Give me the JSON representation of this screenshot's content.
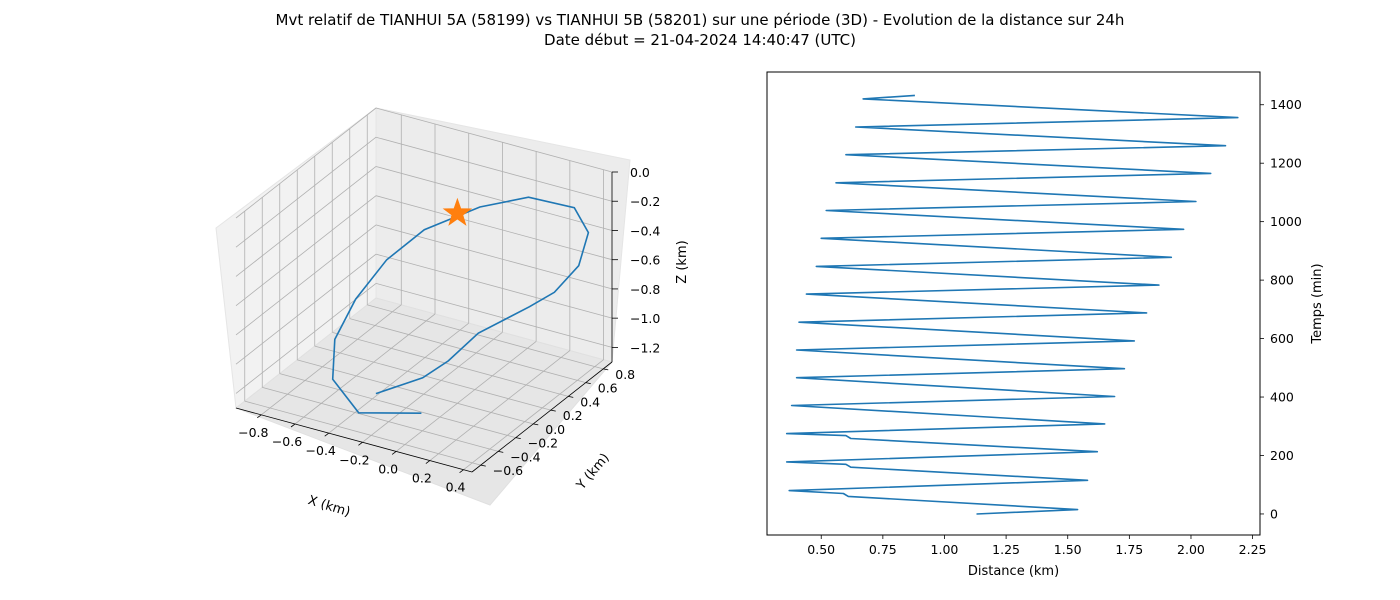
{
  "title_line1": "Mvt relatif de TIANHUI 5A (58199) vs TIANHUI 5B (58201) sur une période (3D) - Evolution de la distance sur 24h",
  "title_line2": "Date début = 21-04-2024 14:40:47 (UTC)",
  "colors": {
    "series": "#1f77b4",
    "marker": "#ff7f0e",
    "grid": "#b0b0b0",
    "pane": "#f2f2f2"
  },
  "chart_data": [
    {
      "type": "line3d",
      "xlabel": "X (km)",
      "ylabel": "Y (km)",
      "zlabel": "Z (km)",
      "x_ticks": [
        "−0.8",
        "−0.6",
        "−0.4",
        "−0.2",
        "0.0",
        "0.2",
        "0.4"
      ],
      "y_ticks": [
        "−0.6",
        "−0.4",
        "−0.2",
        "0.0",
        "0.2",
        "0.4",
        "0.6",
        "0.8"
      ],
      "z_ticks": [
        "0.0",
        "−0.2",
        "−0.4",
        "−0.6",
        "−0.8",
        "−1.0",
        "−1.2"
      ],
      "xlim": [
        -0.95,
        0.45
      ],
      "ylim": [
        -0.7,
        0.9
      ],
      "zlim": [
        -1.3,
        0.0
      ],
      "marker": {
        "shape": "star",
        "x": 0.0,
        "y": 0.0,
        "z": 0.0
      },
      "trajectory": {
        "x": [
          0.02,
          -0.3,
          -0.48,
          -0.53,
          -0.5,
          -0.42,
          -0.3,
          -0.1,
          0.1,
          0.32,
          0.44,
          0.46,
          0.42,
          0.35,
          0.15,
          0.05,
          -0.05,
          -0.25
        ],
        "y": [
          -0.45,
          -0.55,
          -0.5,
          -0.38,
          -0.2,
          0.0,
          0.2,
          0.45,
          0.62,
          0.72,
          0.65,
          0.5,
          0.3,
          0.15,
          -0.05,
          -0.2,
          -0.3,
          -0.45
        ],
        "z": [
          -1.15,
          -1.2,
          -1.05,
          -0.85,
          -0.65,
          -0.45,
          -0.3,
          -0.2,
          -0.15,
          -0.2,
          -0.3,
          -0.45,
          -0.55,
          -0.6,
          -0.75,
          -0.9,
          -1.0,
          -1.1
        ]
      }
    },
    {
      "type": "line",
      "xlabel": "Distance (km)",
      "ylabel": "Temps (min)",
      "xlim": [
        0.28,
        2.28
      ],
      "ylim": [
        -72,
        1512
      ],
      "x_ticks": [
        "0.50",
        "0.75",
        "1.00",
        "1.25",
        "1.50",
        "1.75",
        "2.00",
        "2.25"
      ],
      "x_tick_values": [
        0.5,
        0.75,
        1.0,
        1.25,
        1.5,
        1.75,
        2.0,
        2.25
      ],
      "y_ticks": [
        "0",
        "200",
        "400",
        "600",
        "800",
        "1000",
        "1200",
        "1400"
      ],
      "y_tick_values": [
        0,
        200,
        400,
        600,
        800,
        1000,
        1200,
        1400
      ],
      "series": [
        {
          "x": [
            1.13,
            1.54,
            0.61,
            0.59,
            0.37,
            1.58,
            0.62,
            0.6,
            0.36,
            1.62,
            0.62,
            0.6,
            0.36,
            1.65,
            0.38,
            1.69,
            0.4,
            1.73,
            0.4,
            1.77,
            0.41,
            1.82,
            0.44,
            1.87,
            0.48,
            1.92,
            0.5,
            1.97,
            0.52,
            2.02,
            0.56,
            2.08,
            0.6,
            2.14,
            0.64,
            2.19,
            0.67,
            0.88
          ],
          "y": [
            0,
            15,
            60,
            70,
            80,
            115,
            160,
            170,
            178,
            213,
            258,
            268,
            275,
            308,
            371,
            402,
            466,
            497,
            561,
            592,
            656,
            688,
            752,
            783,
            847,
            878,
            943,
            974,
            1038,
            1069,
            1133,
            1165,
            1229,
            1260,
            1324,
            1356,
            1420,
            1432
          ]
        }
      ]
    }
  ]
}
